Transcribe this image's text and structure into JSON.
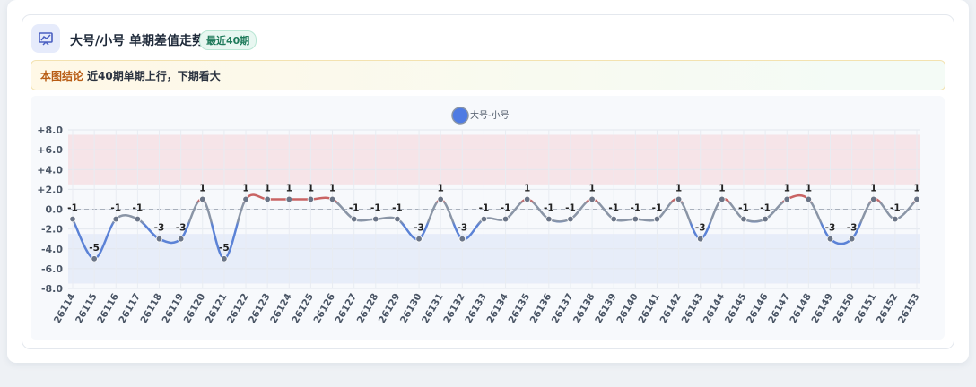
{
  "header": {
    "title": "大号/小号 单期差值走势",
    "badge": "最近40期"
  },
  "conclusion": {
    "label": "本图结论",
    "text": "近40期单期上行，下期看大"
  },
  "chart_data": {
    "type": "line",
    "categories": [
      "26114",
      "26115",
      "26116",
      "26117",
      "26118",
      "26119",
      "26120",
      "26121",
      "26122",
      "26123",
      "26124",
      "26125",
      "26126",
      "26127",
      "26128",
      "26129",
      "26130",
      "26131",
      "26132",
      "26133",
      "26134",
      "26135",
      "26136",
      "26137",
      "26138",
      "26139",
      "26140",
      "26141",
      "26142",
      "26143",
      "26144",
      "26145",
      "26146",
      "26147",
      "26148",
      "26149",
      "26150",
      "26151",
      "26152",
      "26153"
    ],
    "series": [
      {
        "name": "大号-小号",
        "color": "#4f7be3",
        "values": [
          -1,
          -5,
          -1,
          -1,
          -3,
          -3,
          1,
          -5,
          1,
          1,
          1,
          1,
          1,
          -1,
          -1,
          -1,
          -3,
          1,
          -3,
          -1,
          -1,
          1,
          -1,
          -1,
          1,
          -1,
          -1,
          -1,
          1,
          -3,
          1,
          -1,
          -1,
          1,
          1,
          -3,
          -3,
          1,
          -1,
          1
        ]
      }
    ],
    "ylim": [
      -8,
      8
    ],
    "yticks": [
      {
        "value": 8,
        "label": "+8.0"
      },
      {
        "value": 6,
        "label": "+6.0"
      },
      {
        "value": 4,
        "label": "+4.0"
      },
      {
        "value": 2,
        "label": "+2.0"
      },
      {
        "value": 0,
        "label": "0.0"
      },
      {
        "value": -2,
        "label": "-2.0"
      },
      {
        "value": -4,
        "label": "-4.0"
      },
      {
        "value": -6,
        "label": "-6.0"
      },
      {
        "value": -8,
        "label": "-8.0"
      }
    ],
    "bands": [
      {
        "from": 2.5,
        "to": 7.5,
        "color": "#f5d5da"
      },
      {
        "from": -7.5,
        "to": -2.5,
        "color": "#dce4f7"
      }
    ],
    "grid": true,
    "legend": "top"
  }
}
